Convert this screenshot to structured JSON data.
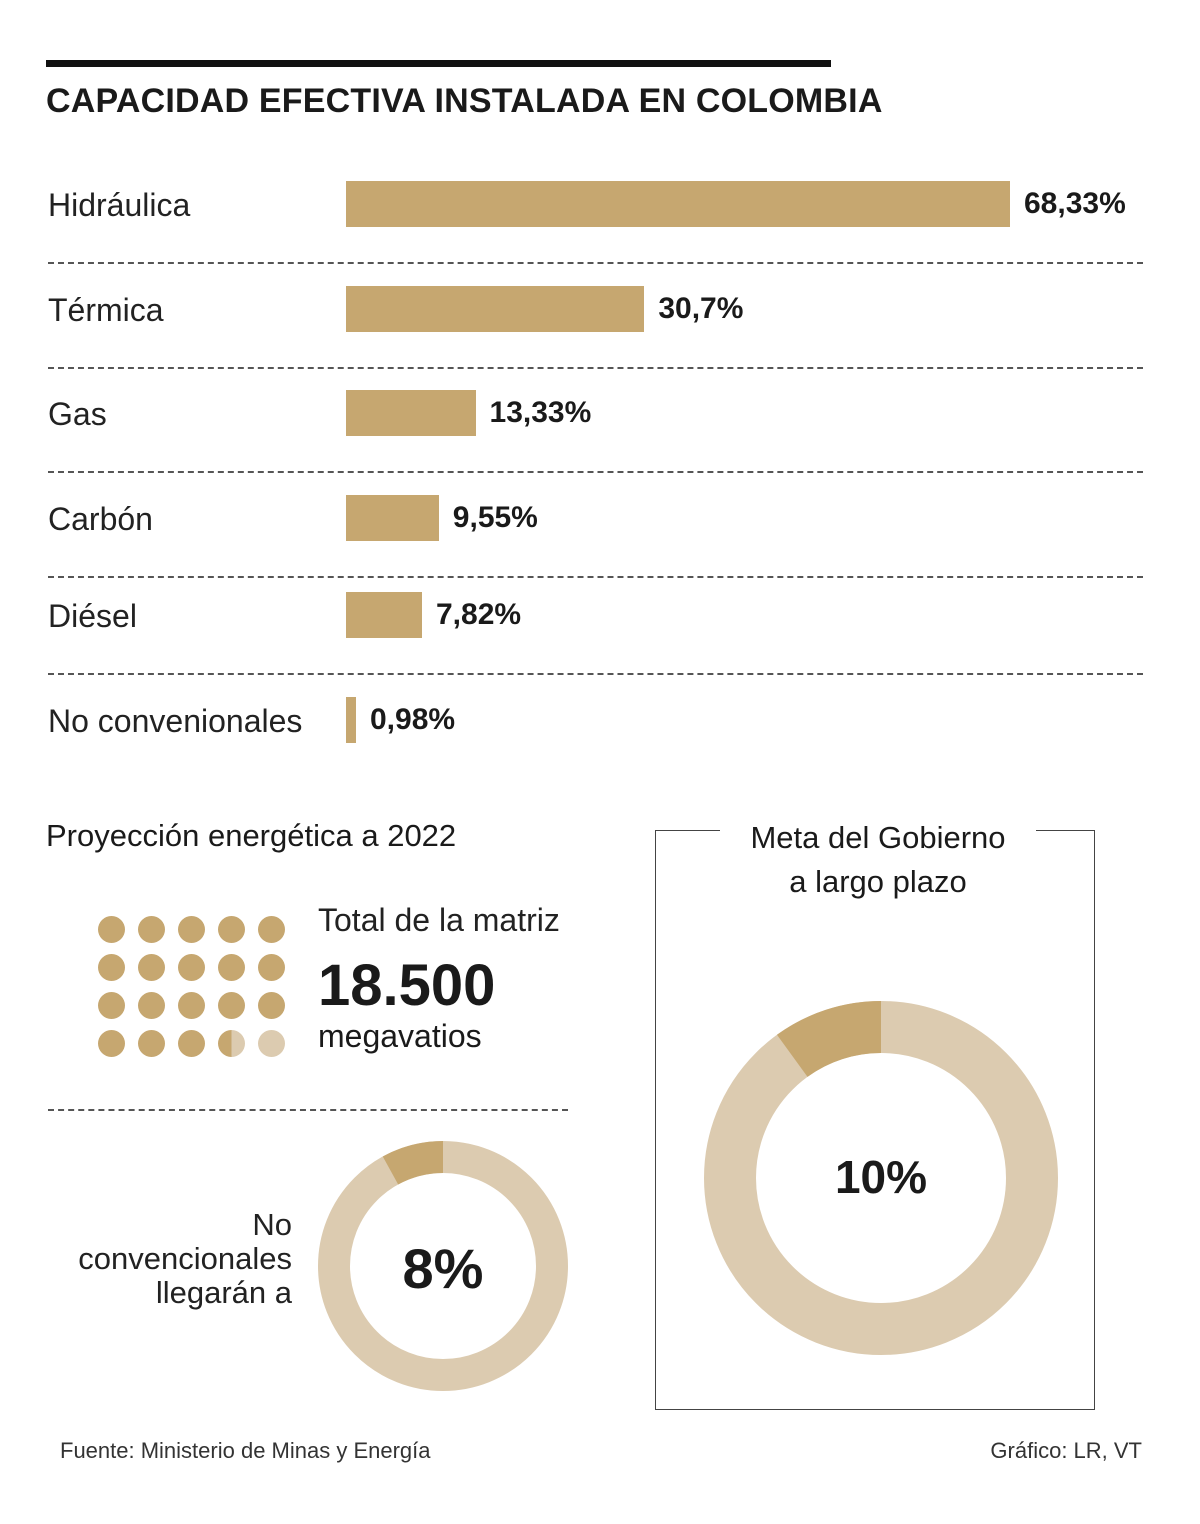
{
  "title": "CAPACIDAD EFECTIVA INSTALADA EN COLOMBIA",
  "colors": {
    "gold": "#c6a770",
    "light": "#dccbb0"
  },
  "chart_data": [
    {
      "type": "bar",
      "orientation": "horizontal",
      "title": "CAPACIDAD EFECTIVA INSTALADA EN COLOMBIA",
      "categories": [
        "Hidráulica",
        "Térmica",
        "Gas",
        "Carbón",
        "Diésel",
        "No convenionales"
      ],
      "values": [
        68.33,
        30.7,
        13.33,
        9.55,
        7.82,
        0.98
      ],
      "value_labels": [
        "68,33%",
        "30,7%",
        "13,33%",
        "9,55%",
        "7,82%",
        "0,98%"
      ],
      "xlim": [
        0,
        68.33
      ],
      "grid": false,
      "legend": "none"
    },
    {
      "type": "pie",
      "variant": "donut",
      "labels": [
        "No convencionales",
        ""
      ],
      "values": [
        8,
        92
      ],
      "center_label": "8%"
    },
    {
      "type": "pie",
      "variant": "donut",
      "labels": [
        "",
        ""
      ],
      "values": [
        10,
        90
      ],
      "center_label": "10%"
    }
  ],
  "projection": {
    "title": "Proyección energética a 2022",
    "matrix_label": "Total de la matriz",
    "matrix_value": "18.500",
    "matrix_unit": "megavatios",
    "dots_total": 20,
    "dots_filled": 18.5,
    "nc_label_1": "No",
    "nc_label_2": "convencionales",
    "nc_label_3": "llegarán a"
  },
  "goal": {
    "title_1": "Meta del Gobierno",
    "title_2": "a largo plazo"
  },
  "footer": {
    "source": "Fuente: Ministerio de Minas y Energía",
    "credit": "Gráfico: LR, VT"
  }
}
